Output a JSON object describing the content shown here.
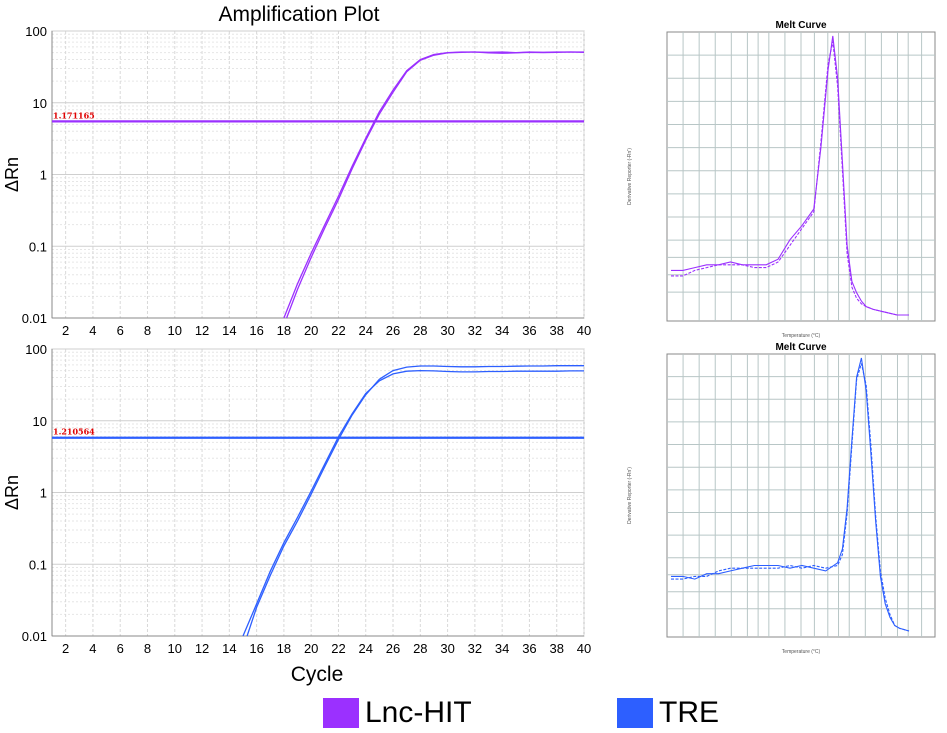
{
  "colors": {
    "lnc": "#9b30ff",
    "tre": "#2d5fff",
    "threshold_text": "#e00000",
    "grid": "#d9d9d9",
    "melt_grid": "#b8c6c6"
  },
  "title": "Amplification Plot",
  "xlabel": "Cycle",
  "legend": [
    {
      "label": "Lnc-HIT",
      "color": "#9b30ff"
    },
    {
      "label": "TRE",
      "color": "#2d5fff"
    }
  ],
  "chart_data": [
    {
      "id": "amp-lnc",
      "type": "line",
      "title": "Amplification Plot",
      "xlabel": "",
      "ylabel": "ΔRn",
      "yscale": "log",
      "ylim": [
        0.01,
        100
      ],
      "xlim": [
        1,
        40
      ],
      "x_ticks": [
        2,
        4,
        6,
        8,
        10,
        12,
        14,
        16,
        18,
        20,
        22,
        24,
        26,
        28,
        30,
        32,
        34,
        36,
        38,
        40
      ],
      "y_ticks": [
        "100",
        "10",
        "1",
        "0.1",
        "0.01"
      ],
      "threshold": {
        "value": 5.5,
        "label": "1.171165"
      },
      "series": [
        {
          "x": [
            18,
            19,
            20,
            21,
            22,
            23,
            24,
            25,
            26,
            27,
            28,
            29,
            30,
            31,
            32,
            33,
            34,
            35,
            36,
            37,
            38,
            39,
            40
          ],
          "y": [
            0.01,
            0.03,
            0.08,
            0.2,
            0.5,
            1.3,
            3.2,
            7.5,
            15,
            28,
            40,
            47,
            50,
            51,
            51,
            50.5,
            51,
            50,
            51,
            50.5,
            51,
            51,
            51
          ]
        },
        {
          "x": [
            18.2,
            19,
            20,
            21,
            22,
            23,
            24,
            25,
            26,
            27,
            28,
            29,
            30,
            31,
            32,
            33,
            34,
            35,
            36,
            37,
            38,
            39,
            40
          ],
          "y": [
            0.01,
            0.025,
            0.07,
            0.18,
            0.45,
            1.2,
            3.0,
            7,
            14,
            27,
            39,
            46,
            49.5,
            50.5,
            51,
            49.5,
            49,
            49.5,
            50.5,
            50,
            50.5,
            51,
            50.5
          ]
        }
      ]
    },
    {
      "id": "amp-tre",
      "type": "line",
      "xlabel": "Cycle",
      "ylabel": "ΔRn",
      "yscale": "log",
      "ylim": [
        0.01,
        100
      ],
      "xlim": [
        1,
        40
      ],
      "x_ticks": [
        2,
        4,
        6,
        8,
        10,
        12,
        14,
        16,
        18,
        20,
        22,
        24,
        26,
        28,
        30,
        32,
        34,
        36,
        38,
        40
      ],
      "y_ticks": [
        "100",
        "10",
        "1",
        "0.1",
        "0.01"
      ],
      "threshold": {
        "value": 5.8,
        "label": "1.210564"
      },
      "series": [
        {
          "x": [
            15.3,
            16,
            17,
            18,
            19,
            20,
            21,
            22,
            23,
            24,
            25,
            26,
            27,
            28,
            29,
            30,
            31,
            32,
            33,
            34,
            35,
            36,
            37,
            38,
            39,
            40
          ],
          "y": [
            0.01,
            0.025,
            0.07,
            0.18,
            0.4,
            0.95,
            2.3,
            5.5,
            12,
            23,
            38,
            50,
            56,
            58,
            58,
            57,
            56.5,
            56.5,
            57,
            57,
            57.5,
            58,
            58,
            58.5,
            58.5,
            58.5
          ]
        },
        {
          "x": [
            15,
            16,
            17,
            18,
            19,
            20,
            21,
            22,
            23,
            24,
            25,
            26,
            27,
            28,
            29,
            30,
            31,
            32,
            33,
            34,
            35,
            36,
            37,
            38,
            39,
            40
          ],
          "y": [
            0.01,
            0.028,
            0.08,
            0.2,
            0.45,
            1.05,
            2.5,
            6,
            12.5,
            24,
            36,
            45,
            49,
            50,
            49.5,
            48.5,
            48,
            48,
            48.5,
            48.5,
            49,
            49,
            49,
            49,
            49.5,
            49.5
          ]
        }
      ]
    },
    {
      "id": "melt-lnc",
      "type": "line",
      "title": "Melt Curve",
      "xlabel": "Temperature (°C)",
      "ylabel": "Derivative Reporter (-Rn')",
      "x_tick_labels": [
        "",
        "",
        "",
        "",
        "",
        ""
      ],
      "y_tick_labels": [
        "",
        "",
        "",
        "",
        ""
      ],
      "series": [
        {
          "x": [
            0,
            0.05,
            0.1,
            0.15,
            0.2,
            0.25,
            0.3,
            0.35,
            0.4,
            0.45,
            0.5,
            0.55,
            0.6,
            0.63,
            0.66,
            0.68,
            0.7,
            0.72,
            0.74,
            0.76,
            0.78,
            0.8,
            0.82,
            0.85,
            0.9,
            0.95,
            1.0
          ],
          "y": [
            0.16,
            0.16,
            0.17,
            0.18,
            0.18,
            0.19,
            0.18,
            0.18,
            0.18,
            0.2,
            0.27,
            0.32,
            0.38,
            0.6,
            0.88,
            1.0,
            0.85,
            0.55,
            0.25,
            0.12,
            0.08,
            0.05,
            0.03,
            0.02,
            0.01,
            0.0,
            0.0
          ]
        },
        {
          "x": [
            0,
            0.05,
            0.1,
            0.15,
            0.2,
            0.25,
            0.3,
            0.35,
            0.4,
            0.45,
            0.5,
            0.55,
            0.6,
            0.63,
            0.66,
            0.68,
            0.7,
            0.72,
            0.74,
            0.76,
            0.78,
            0.8,
            0.82,
            0.85,
            0.9,
            0.95,
            1.0
          ],
          "y": [
            0.14,
            0.14,
            0.16,
            0.17,
            0.18,
            0.18,
            0.18,
            0.17,
            0.17,
            0.19,
            0.25,
            0.31,
            0.37,
            0.62,
            0.9,
            0.98,
            0.82,
            0.52,
            0.22,
            0.1,
            0.06,
            0.04,
            0.03,
            0.02,
            0.01,
            0.0,
            0.0
          ]
        }
      ]
    },
    {
      "id": "melt-tre",
      "type": "line",
      "title": "Melt Curve",
      "xlabel": "Temperature (°C)",
      "ylabel": "Derivative Reporter (-Rn')",
      "x_tick_labels": [
        "",
        "",
        "",
        "",
        "",
        ""
      ],
      "y_tick_labels": [
        "",
        "",
        "",
        ""
      ],
      "series": [
        {
          "x": [
            0,
            0.05,
            0.1,
            0.15,
            0.2,
            0.25,
            0.3,
            0.35,
            0.4,
            0.45,
            0.5,
            0.55,
            0.6,
            0.65,
            0.7,
            0.72,
            0.74,
            0.76,
            0.78,
            0.8,
            0.82,
            0.84,
            0.86,
            0.88,
            0.9,
            0.92,
            0.94,
            0.96,
            1.0
          ],
          "y": [
            0.2,
            0.2,
            0.19,
            0.21,
            0.21,
            0.22,
            0.23,
            0.24,
            0.24,
            0.24,
            0.23,
            0.24,
            0.23,
            0.22,
            0.25,
            0.3,
            0.45,
            0.7,
            0.93,
            1.0,
            0.88,
            0.65,
            0.4,
            0.2,
            0.1,
            0.05,
            0.02,
            0.01,
            0.0
          ]
        },
        {
          "x": [
            0,
            0.05,
            0.1,
            0.15,
            0.2,
            0.25,
            0.3,
            0.35,
            0.4,
            0.45,
            0.5,
            0.55,
            0.6,
            0.65,
            0.7,
            0.72,
            0.74,
            0.76,
            0.78,
            0.8,
            0.82,
            0.84,
            0.86,
            0.88,
            0.9,
            0.92,
            0.94,
            0.96,
            1.0
          ],
          "y": [
            0.19,
            0.19,
            0.2,
            0.2,
            0.22,
            0.23,
            0.23,
            0.23,
            0.23,
            0.23,
            0.24,
            0.23,
            0.24,
            0.23,
            0.24,
            0.28,
            0.43,
            0.68,
            0.92,
            0.98,
            0.9,
            0.68,
            0.42,
            0.22,
            0.12,
            0.06,
            0.02,
            0.01,
            0.0
          ]
        }
      ]
    }
  ]
}
